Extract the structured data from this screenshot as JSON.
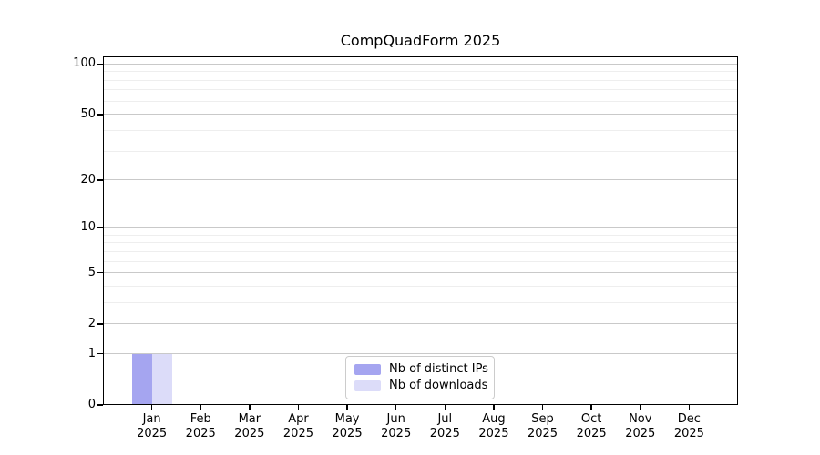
{
  "chart_data": {
    "type": "bar",
    "title": "CompQuadForm 2025",
    "categories": [
      "Jan",
      "Feb",
      "Mar",
      "Apr",
      "May",
      "Jun",
      "Jul",
      "Aug",
      "Sep",
      "Oct",
      "Nov",
      "Dec"
    ],
    "category_year": "2025",
    "series": [
      {
        "name": "Nb of distinct IPs",
        "color": "#a5a5f0",
        "values": [
          1,
          0,
          0,
          0,
          0,
          0,
          0,
          0,
          0,
          0,
          0,
          0
        ]
      },
      {
        "name": "Nb of downloads",
        "color": "#dcdcf9",
        "values": [
          1,
          0,
          0,
          0,
          0,
          0,
          0,
          0,
          0,
          0,
          0,
          0
        ]
      }
    ],
    "y_scale": "log1p",
    "y_major_ticks": [
      0,
      1,
      2,
      5,
      10,
      20,
      50,
      100
    ],
    "y_minor_ticks": [
      3,
      4,
      6,
      7,
      8,
      9,
      30,
      40,
      60,
      70,
      80,
      90
    ],
    "ylim": [
      0,
      111
    ],
    "grid": "horizontal-major-and-minor",
    "legend_position": "bottom-center"
  },
  "colors": {
    "background": "#ffffff",
    "spine": "#000000",
    "major_grid": "#c9c9c9",
    "minor_grid": "#eeeeee",
    "legend_border": "#cccccc",
    "text": "#000000"
  }
}
